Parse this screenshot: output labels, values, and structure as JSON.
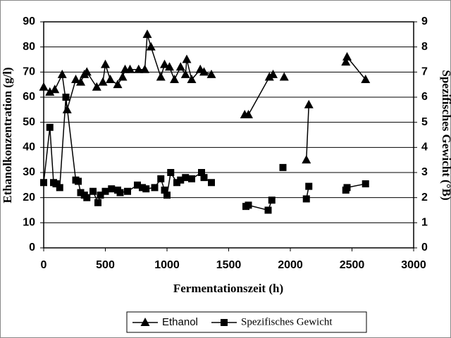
{
  "chart_data": {
    "type": "line",
    "x_label": "Fermentationszeit (h)",
    "y_label": "Ethanolkonzentration (g/l)",
    "y2_label": "Spezifisches Gewicht (°B)",
    "xlim": [
      0,
      3000
    ],
    "xticks": [
      0,
      500,
      1000,
      1500,
      2000,
      2500,
      3000
    ],
    "ylim": [
      0,
      90
    ],
    "yticks": [
      0,
      10,
      20,
      30,
      40,
      50,
      60,
      70,
      80,
      90
    ],
    "y2lim": [
      0,
      9
    ],
    "y2ticks": [
      0,
      1,
      2,
      3,
      4,
      5,
      6,
      7,
      8,
      9
    ],
    "grid": true,
    "series": [
      {
        "name": "Ethanol",
        "color": "#000000",
        "marker": "triangle",
        "x": [
          0,
          50,
          90,
          150,
          190,
          260,
          300,
          330,
          350,
          430,
          480,
          500,
          540,
          600,
          640,
          660,
          700,
          770,
          820,
          840,
          870,
          950,
          980,
          1020,
          1060,
          1110,
          1150,
          1160,
          1200,
          1270,
          1300,
          1360,
          null,
          1630,
          1660,
          1830,
          1860,
          null,
          1950,
          null,
          2130,
          2150,
          null,
          2450,
          2460,
          2610
        ],
        "values": [
          64,
          62,
          63,
          69,
          55,
          67,
          66,
          69,
          70,
          64,
          66,
          73,
          67,
          65,
          68,
          71,
          71,
          71,
          71,
          85,
          80,
          68,
          73,
          72,
          67,
          72,
          69,
          75,
          67,
          71,
          70,
          69,
          null,
          53,
          53,
          68,
          69,
          null,
          68,
          null,
          35,
          57,
          null,
          74,
          76,
          67
        ]
      },
      {
        "name": "Spezifisches Gewicht",
        "color": "#000000",
        "marker": "square",
        "axis": "y2",
        "x": [
          0,
          50,
          80,
          100,
          130,
          180,
          260,
          280,
          300,
          330,
          350,
          400,
          440,
          460,
          500,
          550,
          600,
          620,
          680,
          760,
          800,
          830,
          900,
          950,
          980,
          1000,
          1030,
          1080,
          1110,
          1150,
          1200,
          1280,
          1300,
          1360,
          null,
          1640,
          1660,
          1820,
          1850,
          null,
          1940,
          null,
          2130,
          2150,
          null,
          2450,
          2460,
          2610
        ],
        "values": [
          2.6,
          4.8,
          2.6,
          2.55,
          2.4,
          6.0,
          2.7,
          2.65,
          2.2,
          2.1,
          2.0,
          2.25,
          1.8,
          2.1,
          2.25,
          2.35,
          2.3,
          2.2,
          2.25,
          2.5,
          2.4,
          2.35,
          2.4,
          2.75,
          2.3,
          2.1,
          3.0,
          2.6,
          2.7,
          2.8,
          2.75,
          3.0,
          2.8,
          2.6,
          null,
          1.65,
          1.7,
          1.5,
          1.9,
          null,
          3.2,
          null,
          1.95,
          2.45,
          null,
          2.3,
          2.4,
          2.55
        ]
      }
    ]
  }
}
